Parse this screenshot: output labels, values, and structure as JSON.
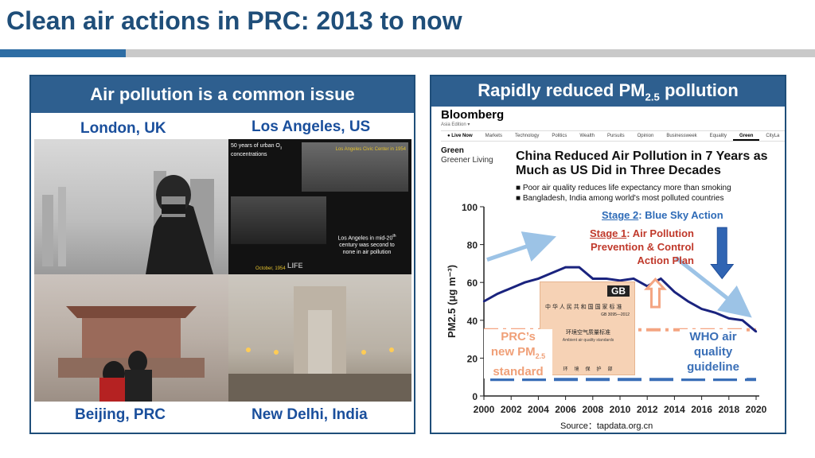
{
  "page": {
    "title": "Clean air actions in PRC: 2013 to now"
  },
  "left_panel": {
    "header": "Air pollution is a common issue",
    "cities": {
      "london": "London, UK",
      "la": "Los Angeles, US",
      "beijing": "Beijing, PRC",
      "delhi": "New Delhi, India"
    },
    "la_photo": {
      "caption_top_1": "50 years of urban O",
      "caption_top_sub": "3",
      "caption_top_2": "concentrations",
      "overlay_label": "Los Angeles Civic Center in 1954",
      "caption_bottom_1": "Los Angeles in mid-20",
      "caption_bottom_sup": "th",
      "caption_bottom_2": "century was second to",
      "caption_bottom_3": "none in air pollution",
      "date": "October, 1954",
      "brand": "LIFE"
    }
  },
  "right_panel": {
    "header_main": "Rapidly reduced PM",
    "header_sub": "2.5",
    "header_tail": " pollution",
    "article": {
      "brand": "Bloomberg",
      "edition": "Asia Edition ▾",
      "nav": [
        "● Live Now",
        "Markets",
        "Technology",
        "Politics",
        "Wealth",
        "Pursuits",
        "Opinion",
        "Businessweek",
        "Equality",
        "Green",
        "CityLa"
      ],
      "section": "Green",
      "section_sub": "Greener Living",
      "headline_1": "China Reduced Air Pollution in 7 Years as",
      "headline_2": "Much as US Did in Three Decades",
      "bullets": [
        "Poor air quality reduces life expectancy more than smoking",
        "Bangladesh, India among world's most polluted countries"
      ]
    },
    "annotations": {
      "stage2_label": "Stage 2",
      "stage2_text": ": Blue Sky Action",
      "stage1_label": "Stage 1",
      "stage1_text_1": ": Air Pollution",
      "stage1_text_2": "Prevention & Control",
      "stage1_text_3": "Action Plan",
      "prc_1": "PRC’s",
      "prc_2": "new PM",
      "prc_sub": "2.5",
      "prc_3": "standard",
      "who_1": "WHO air",
      "who_2": "quality",
      "who_3": "guideline",
      "doc_logo": "GB",
      "doc_title": "中 华 人 民 共 和 国 国 家 标 准",
      "doc_code": "GB 3095—2012",
      "doc_name": "环境空气质量标准",
      "doc_name_en": "Ambient air quality standards",
      "doc_footer": "环　境　保　护　部"
    },
    "source": "Source：tapdata.org.cn"
  },
  "chart_data": {
    "type": "line",
    "ylabel": "PM2.5 (μg m⁻³)",
    "xlim": [
      2000,
      2020
    ],
    "ylim": [
      0,
      100
    ],
    "x_ticks": [
      "2000",
      "2002",
      "2004",
      "2006",
      "2008",
      "2010",
      "2012",
      "2014",
      "2016",
      "2018",
      "2020"
    ],
    "y_ticks": [
      "0",
      "20",
      "40",
      "60",
      "80",
      "100"
    ],
    "series": [
      {
        "x": [
          2000,
          2001,
          2002,
          2003,
          2004,
          2005,
          2006,
          2007,
          2008,
          2009,
          2010,
          2011,
          2012,
          2013,
          2014,
          2015,
          2016,
          2017,
          2018,
          2019,
          2020
        ],
        "values": [
          50,
          54,
          57,
          60,
          62,
          65,
          68,
          68,
          62,
          62,
          61,
          62,
          58,
          62,
          55,
          50,
          46,
          44,
          41,
          40,
          34
        ]
      }
    ],
    "reference_lines": [
      {
        "label": "PRC’s new PM2.5 standard",
        "value": 35
      },
      {
        "label": "WHO air quality guideline",
        "value": 10
      }
    ],
    "colors": {
      "series": "#1a237e",
      "prc_standard": "#f4a582",
      "who_guideline": "#3a6fb7",
      "arrow_light": "#9cc3e6",
      "arrow_down": "#3065b3",
      "arrow_up": "#f4a582",
      "annotation_red": "#c0392b",
      "annotation_blue": "#2e6bb7"
    }
  }
}
